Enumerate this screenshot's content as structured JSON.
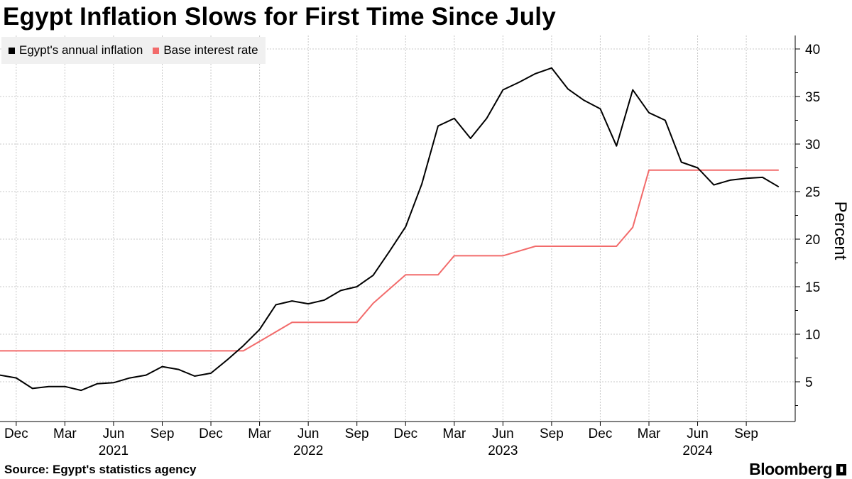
{
  "header": {
    "title": "Egypt Inflation Slows for First Time Since July"
  },
  "footer": {
    "source": "Source: Egypt's statistics agency",
    "brand": "Bloomberg"
  },
  "colors": {
    "inflation": "#000000",
    "rate": "#f26b6b",
    "grid": "#c8c8c8",
    "legend_bg": "#f0f0f0"
  },
  "chart_data": {
    "type": "line",
    "title": "Egypt Inflation Slows for First Time Since July",
    "ylabel": "Percent",
    "ylim": [
      2,
      41
    ],
    "yticks": [
      5,
      10,
      15,
      20,
      25,
      30,
      35,
      40
    ],
    "xlim": [
      "2020-11",
      "2025-01"
    ],
    "x_tick_labels": [
      {
        "month": "2020-12",
        "label": "Dec"
      },
      {
        "month": "2021-03",
        "label": "Mar"
      },
      {
        "month": "2021-06",
        "label": "Jun"
      },
      {
        "month": "2021-09",
        "label": "Sep"
      },
      {
        "month": "2021-12",
        "label": "Dec"
      },
      {
        "month": "2022-03",
        "label": "Mar"
      },
      {
        "month": "2022-06",
        "label": "Jun"
      },
      {
        "month": "2022-09",
        "label": "Sep"
      },
      {
        "month": "2022-12",
        "label": "Dec"
      },
      {
        "month": "2023-03",
        "label": "Mar"
      },
      {
        "month": "2023-06",
        "label": "Jun"
      },
      {
        "month": "2023-09",
        "label": "Sep"
      },
      {
        "month": "2023-12",
        "label": "Dec"
      },
      {
        "month": "2024-03",
        "label": "Mar"
      },
      {
        "month": "2024-06",
        "label": "Jun"
      },
      {
        "month": "2024-09",
        "label": "Sep"
      }
    ],
    "year_labels": [
      {
        "month": "2021-06",
        "label": "2021"
      },
      {
        "month": "2022-06",
        "label": "2022"
      },
      {
        "month": "2023-06",
        "label": "2023"
      },
      {
        "month": "2024-06",
        "label": "2024"
      }
    ],
    "grid": true,
    "legend_position": "top-left",
    "series": [
      {
        "name": "Egypt's annual inflation",
        "color": "#000000",
        "x": [
          "2020-11",
          "2020-12",
          "2021-01",
          "2021-02",
          "2021-03",
          "2021-04",
          "2021-05",
          "2021-06",
          "2021-07",
          "2021-08",
          "2021-09",
          "2021-10",
          "2021-11",
          "2021-12",
          "2022-01",
          "2022-02",
          "2022-03",
          "2022-04",
          "2022-05",
          "2022-06",
          "2022-07",
          "2022-08",
          "2022-09",
          "2022-10",
          "2022-11",
          "2022-12",
          "2023-01",
          "2023-02",
          "2023-03",
          "2023-04",
          "2023-05",
          "2023-06",
          "2023-07",
          "2023-08",
          "2023-09",
          "2023-10",
          "2023-11",
          "2023-12",
          "2024-01",
          "2024-02",
          "2024-03",
          "2024-04",
          "2024-05",
          "2024-06",
          "2024-07",
          "2024-08",
          "2024-09",
          "2024-10",
          "2024-11"
        ],
        "values": [
          5.7,
          5.4,
          4.3,
          4.5,
          4.5,
          4.1,
          4.8,
          4.9,
          5.4,
          5.7,
          6.6,
          6.3,
          5.6,
          5.9,
          7.3,
          8.8,
          10.5,
          13.1,
          13.5,
          13.2,
          13.6,
          14.6,
          15.0,
          16.2,
          18.7,
          21.3,
          25.8,
          31.9,
          32.7,
          30.6,
          32.7,
          35.7,
          36.5,
          37.4,
          38.0,
          35.8,
          34.6,
          33.7,
          29.8,
          35.7,
          33.3,
          32.5,
          28.1,
          27.5,
          25.7,
          26.2,
          26.4,
          26.5,
          25.5
        ]
      },
      {
        "name": "Base interest rate",
        "color": "#f26b6b",
        "x": [
          "2020-11",
          "2022-02",
          "2022-03",
          "2022-05",
          "2022-09",
          "2022-10",
          "2022-12",
          "2023-02",
          "2023-03",
          "2023-06",
          "2023-08",
          "2023-12",
          "2024-01",
          "2024-02",
          "2024-03",
          "2024-11"
        ],
        "values": [
          8.25,
          8.25,
          9.25,
          11.25,
          11.25,
          13.25,
          16.25,
          16.25,
          18.25,
          18.25,
          19.25,
          19.25,
          19.25,
          21.25,
          27.25,
          27.25
        ]
      }
    ]
  }
}
